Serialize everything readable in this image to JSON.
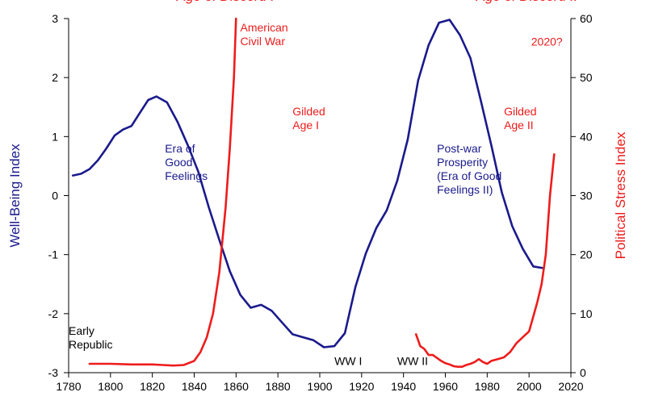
{
  "chart_data": {
    "type": "line",
    "title": "",
    "xlabel": "",
    "ylabel": "Well-Being Index",
    "y2label": "Political Stress Index",
    "xlim": [
      1780,
      2020
    ],
    "ylim": [
      -3,
      3
    ],
    "y2lim": [
      0,
      60
    ],
    "x_ticks": [
      "1780",
      "1800",
      "1820",
      "1840",
      "1860",
      "1880",
      "1900",
      "1920",
      "1940",
      "1960",
      "1980",
      "2000",
      "2020"
    ],
    "y_ticks": [
      "-3",
      "-2",
      "-1",
      "0",
      "1",
      "2",
      "3"
    ],
    "y2_ticks": [
      "0",
      "10",
      "20",
      "30",
      "40",
      "50",
      "60"
    ],
    "colors": {
      "wellbeing": "#1a1a8c",
      "stress": "#ee1c1c",
      "axis": "#000000",
      "annotation": "#000000"
    },
    "series": [
      {
        "name": "Well-Being Index",
        "axis": "left",
        "color": "#1a1a8c",
        "x": [
          1782,
          1786,
          1790,
          1794,
          1798,
          1802,
          1806,
          1810,
          1814,
          1818,
          1822,
          1827,
          1832,
          1837,
          1842,
          1847,
          1852,
          1857,
          1862,
          1867,
          1872,
          1877,
          1882,
          1887,
          1892,
          1897,
          1902,
          1907,
          1912,
          1917,
          1922,
          1927,
          1932,
          1937,
          1942,
          1947,
          1952,
          1957,
          1962,
          1967,
          1972,
          1977,
          1982,
          1987,
          1992,
          1997,
          2002,
          2007
        ],
        "values": [
          0.34,
          0.37,
          0.45,
          0.6,
          0.8,
          1.02,
          1.12,
          1.18,
          1.4,
          1.62,
          1.68,
          1.58,
          1.25,
          0.85,
          0.4,
          -0.2,
          -0.75,
          -1.28,
          -1.68,
          -1.9,
          -1.85,
          -1.95,
          -2.15,
          -2.35,
          -2.4,
          -2.45,
          -2.57,
          -2.55,
          -2.33,
          -1.55,
          -0.98,
          -0.55,
          -0.25,
          0.25,
          0.95,
          1.95,
          2.55,
          2.93,
          2.98,
          2.72,
          2.33,
          1.6,
          0.85,
          0.05,
          -0.52,
          -0.9,
          -1.2,
          -1.23
        ]
      },
      {
        "name": "Political Stress Index (Age of Discord I)",
        "axis": "right",
        "color": "#ee1c1c",
        "x": [
          1790,
          1800,
          1810,
          1820,
          1825,
          1830,
          1835,
          1840,
          1843,
          1846,
          1849,
          1852,
          1855,
          1857,
          1859,
          1860
        ],
        "values": [
          1.5,
          1.5,
          1.4,
          1.4,
          1.3,
          1.2,
          1.3,
          2.0,
          3.5,
          6.0,
          10.0,
          17.0,
          28.0,
          38.0,
          50.0,
          60.0
        ]
      },
      {
        "name": "Political Stress Index (Age of Discord II)",
        "axis": "right",
        "color": "#ee1c1c",
        "x": [
          1946,
          1948,
          1950,
          1952,
          1954,
          1956,
          1958,
          1960,
          1962,
          1964,
          1966,
          1968,
          1970,
          1972,
          1974,
          1976,
          1978,
          1980,
          1982,
          1985,
          1988,
          1991,
          1994,
          1997,
          2000,
          2002,
          2004,
          2006,
          2008,
          2010,
          2012
        ],
        "values": [
          6.5,
          4.5,
          4.0,
          3.0,
          3.0,
          2.5,
          2.0,
          1.6,
          1.4,
          1.1,
          1.0,
          1.0,
          1.3,
          1.5,
          1.8,
          2.3,
          1.8,
          1.5,
          2.0,
          2.3,
          2.6,
          3.5,
          5.0,
          6.0,
          7.0,
          9.5,
          12.0,
          15.0,
          20.0,
          30.0,
          37.0
        ]
      }
    ],
    "annotations": [
      {
        "id": "age-of-discord-1",
        "text": "Age of Discord I",
        "x": 1855,
        "y2": 63,
        "color": "#ee1c1c",
        "style": "era"
      },
      {
        "id": "age-of-discord-2",
        "text": "Age of Discord II",
        "x": 1999,
        "y2": 63,
        "color": "#ee1c1c",
        "style": "era"
      },
      {
        "id": "american-civil-war",
        "lines": [
          "American",
          "Civil War"
        ],
        "x": 1862,
        "y2": 57.8,
        "color": "#ee1c1c"
      },
      {
        "id": "gilded-age-1",
        "lines": [
          "Gilded",
          "Age I"
        ],
        "x": 1887,
        "y2": 43.6,
        "color": "#ee1c1c"
      },
      {
        "id": "gilded-age-2",
        "lines": [
          "Gilded",
          "Age II"
        ],
        "x": 1988,
        "y2": 43.6,
        "color": "#ee1c1c"
      },
      {
        "id": "year-2020",
        "lines": [
          "2020?"
        ],
        "x": 2001,
        "y2": 55.4,
        "color": "#ee1c1c"
      },
      {
        "id": "era-of-good-feelings",
        "lines": [
          "Era of",
          "Good",
          "Feelings"
        ],
        "x": 1826,
        "y2": 37.3,
        "color": "#1a1a8c"
      },
      {
        "id": "post-war-prosperity",
        "lines": [
          "Post-war",
          "Prosperity",
          "(Era of Good",
          "Feelings II)"
        ],
        "x": 1956,
        "y2": 37.3,
        "color": "#1a1a8c"
      },
      {
        "id": "early-republic",
        "lines": [
          "Early",
          "Republic"
        ],
        "x": 1780,
        "y2": 6.4,
        "color": "#000000"
      },
      {
        "id": "ww1",
        "lines": [
          "WW I"
        ],
        "x": 1907,
        "y2": 1.3,
        "color": "#000000"
      },
      {
        "id": "ww2",
        "lines": [
          "WW II"
        ],
        "x": 1937,
        "y2": 1.3,
        "color": "#000000"
      }
    ]
  }
}
